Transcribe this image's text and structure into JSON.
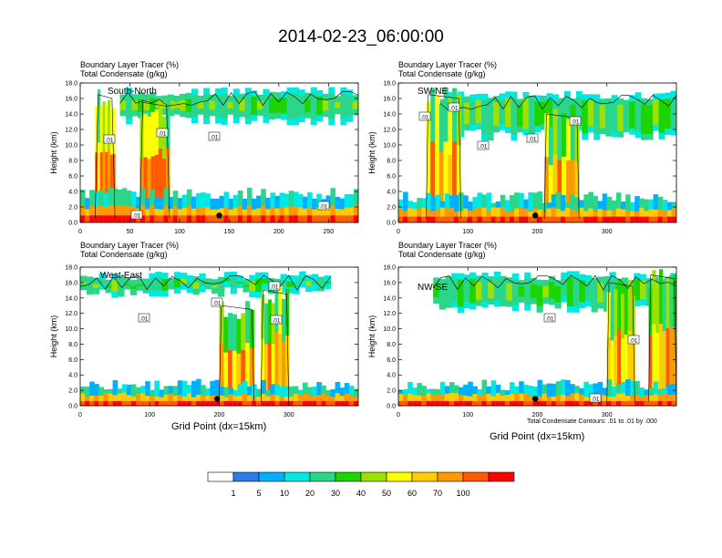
{
  "title": "2014-02-23_06:00:00",
  "footnote": "Total Condensate Contours: .01 to .01 by .000",
  "xlabel": "Grid Point (dx=15km)",
  "colors": [
    "#ffffff",
    "#2d7be8",
    "#00b0ff",
    "#00e8e0",
    "#2bd68a",
    "#1cd400",
    "#9ee000",
    "#ffff00",
    "#ffcc00",
    "#ff9900",
    "#ff5a00",
    "#ff0000"
  ],
  "colorbar": {
    "labels": [
      "1",
      "5",
      "10",
      "20",
      "30",
      "40",
      "50",
      "60",
      "70",
      "100"
    ]
  },
  "chart_data": [
    {
      "type": "heatmap",
      "panel": "South-North",
      "title_line1": "Boundary Layer Tracer   (%)",
      "title_line2": "Total Condensate   (g/kg)",
      "ylabel": "Height (km)",
      "xlim": [
        0,
        280
      ],
      "ylim": [
        0,
        18
      ],
      "xticks": [
        0,
        50,
        100,
        150,
        200,
        250
      ],
      "yticks": [
        "0.0",
        "2.0",
        "4.0",
        "6.0",
        "8.0",
        "10.0",
        "12.0",
        "14.0",
        "16.0",
        "18.0"
      ],
      "contour_labels": [
        ".01",
        ".01",
        ".01",
        ".01",
        ".01"
      ],
      "marker_x": 140,
      "anvil": {
        "x": [
          40,
          280
        ],
        "y": [
          12.5,
          17.5
        ]
      },
      "cores": [
        {
          "x": [
            15,
            35
          ],
          "top": 17.5
        },
        {
          "x": [
            60,
            90
          ],
          "top": 16.5
        }
      ],
      "pbl_top": 3.0
    },
    {
      "type": "heatmap",
      "panel": "SW-NE",
      "title_line1": "Boundary Layer Tracer   (%)",
      "title_line2": "Total Condensate   (g/kg)",
      "ylabel": "Height (km)",
      "xlim": [
        0,
        400
      ],
      "ylim": [
        0,
        18
      ],
      "xticks": [
        0,
        100,
        200,
        300
      ],
      "yticks": [
        "0.0",
        "2.0",
        "4.0",
        "6.0",
        "8.0",
        "10.0",
        "12.0",
        "14.0",
        "16.0",
        "18.0"
      ],
      "contour_labels": [
        ".01",
        ".01",
        ".01",
        ".01",
        ".01"
      ],
      "marker_x": 197,
      "anvil": {
        "x": [
          60,
          400
        ],
        "y": [
          10.5,
          17.0
        ]
      },
      "cores": [
        {
          "x": [
            40,
            90
          ],
          "top": 17.5
        },
        {
          "x": [
            210,
            260
          ],
          "top": 15.0
        }
      ],
      "pbl_top": 2.5
    },
    {
      "type": "heatmap",
      "panel": "West-East",
      "title_line1": "Boundary Layer Tracer   (%)",
      "title_line2": "Total Condensate   (g/kg)",
      "ylabel": "Height (km)",
      "xlim": [
        0,
        400
      ],
      "ylim": [
        0,
        18
      ],
      "xticks": [
        0,
        100,
        200,
        300
      ],
      "yticks": [
        "0.0",
        "2.0",
        "4.0",
        "6.0",
        "8.0",
        "10.0",
        "12.0",
        "14.0",
        "16.0",
        "18.0"
      ],
      "contour_labels": [
        ".01",
        ".01",
        ".01",
        ".01"
      ],
      "marker_x": 197,
      "anvil": {
        "x": [
          0,
          360
        ],
        "y": [
          14.0,
          17.5
        ]
      },
      "cores": [
        {
          "x": [
            200,
            250
          ],
          "top": 14.0
        },
        {
          "x": [
            260,
            300
          ],
          "top": 16.0
        }
      ],
      "pbl_top": 2.0
    },
    {
      "type": "heatmap",
      "panel": "NW-SE",
      "title_line1": "Boundary Layer Tracer   (%)",
      "title_line2": "Total Condensate   (g/kg)",
      "ylabel": "Height (km)",
      "xlim": [
        0,
        400
      ],
      "ylim": [
        0,
        18
      ],
      "xticks": [
        0,
        100,
        200,
        300
      ],
      "yticks": [
        "0.0",
        "2.0",
        "4.0",
        "6.0",
        "8.0",
        "10.0",
        "12.0",
        "14.0",
        "16.0",
        "18.0"
      ],
      "contour_labels": [
        ".01",
        ".01",
        ".01"
      ],
      "marker_x": 197,
      "anvil": {
        "x": [
          50,
          400
        ],
        "y": [
          12.0,
          17.5
        ]
      },
      "cores": [
        {
          "x": [
            300,
            340
          ],
          "top": 17.0
        },
        {
          "x": [
            360,
            400
          ],
          "top": 18.0
        }
      ],
      "pbl_top": 2.0
    }
  ]
}
